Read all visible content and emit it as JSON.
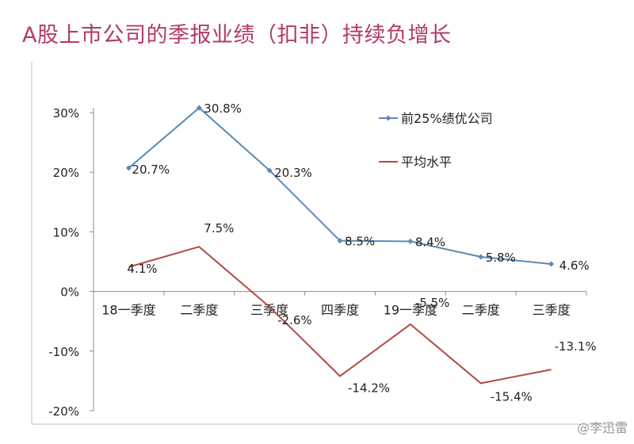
{
  "title": "A股上市公司的季报业绩（扣非）持续负增长",
  "watermark": "@李迅雷",
  "colors": {
    "title": "#b23a6b",
    "series1": "#5b8ab5",
    "series2": "#b24a45",
    "axis": "#8c8c8c"
  },
  "chart_data": {
    "type": "line",
    "title": "A股上市公司的季报业绩（扣非）持续负增长",
    "categories": [
      "18一季度",
      "二季度",
      "三季度",
      "四季度",
      "19一季度",
      "二季度",
      "三季度"
    ],
    "y_ticks": [
      "30%",
      "20%",
      "10%",
      "0%",
      "-10%",
      "-20%"
    ],
    "y_tick_values": [
      30,
      20,
      10,
      0,
      -10,
      -20
    ],
    "ylim": [
      -20,
      30
    ],
    "series": [
      {
        "name": "前25%绩优公司",
        "values": [
          20.7,
          30.8,
          20.3,
          8.5,
          8.4,
          5.8,
          4.6
        ],
        "labels": [
          "20.7%",
          "30.8%",
          "20.3%",
          "8.5%",
          "8.4%",
          "5.8%",
          "4.6%"
        ],
        "marker": "diamond"
      },
      {
        "name": "平均水平",
        "values": [
          4.1,
          7.5,
          -2.6,
          -14.2,
          -5.5,
          -15.4,
          -13.1
        ],
        "labels": [
          "4.1%",
          "7.5%",
          "-2.6%",
          "-14.2%",
          "-5.5%",
          "-15.4%",
          "-13.1%"
        ],
        "marker": "none"
      }
    ],
    "legend_position": "top-right",
    "grid": false
  }
}
